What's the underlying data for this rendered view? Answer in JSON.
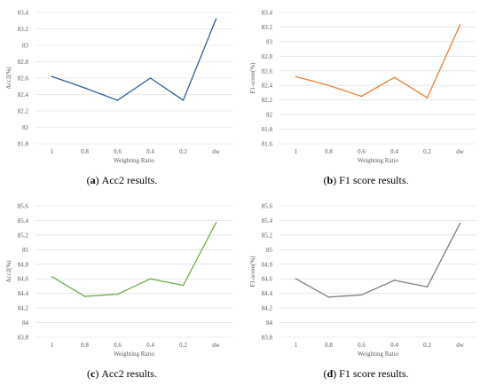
{
  "chart_data": [
    {
      "type": "line",
      "caption_letter": "a",
      "caption_text": " Acc2 results.",
      "xlabel": "Weighting Ratio",
      "ylabel": "Acc2(%)",
      "categories": [
        "1",
        "0.8",
        "0.6",
        "0.4",
        "0.2",
        "dw"
      ],
      "values": [
        82.62,
        82.48,
        82.33,
        82.6,
        82.33,
        83.32
      ],
      "ylim": [
        81.8,
        83.4
      ],
      "yticks": [
        "81.8",
        "82",
        "82.2",
        "82.4",
        "82.6",
        "82.8",
        "83",
        "83.2",
        "83.4"
      ],
      "color": "#2e5f9e",
      "grid": true
    },
    {
      "type": "line",
      "caption_letter": "b",
      "caption_text": " F1 score results.",
      "xlabel": "Weighting Ratio",
      "ylabel": "F1-score(%)",
      "categories": [
        "1",
        "0.8",
        "0.6",
        "0.4",
        "0.2",
        "dw"
      ],
      "values": [
        82.52,
        82.4,
        82.25,
        82.51,
        82.23,
        83.23
      ],
      "ylim": [
        81.6,
        83.4
      ],
      "yticks": [
        "81.6",
        "81.8",
        "82",
        "82.2",
        "82.4",
        "82.6",
        "82.8",
        "83",
        "83.2",
        "83.4"
      ],
      "color": "#ed7d31",
      "grid": true
    },
    {
      "type": "line",
      "caption_letter": "c",
      "caption_text": " Acc2 results.",
      "xlabel": "Weighting Ratio",
      "ylabel": "Acc2(%)",
      "categories": [
        "1",
        "0.8",
        "0.6",
        "0.4",
        "0.2",
        "dw"
      ],
      "values": [
        84.63,
        84.36,
        84.39,
        84.6,
        84.51,
        85.37
      ],
      "ylim": [
        83.8,
        85.6
      ],
      "yticks": [
        "83.8",
        "84",
        "84.2",
        "84.4",
        "84.6",
        "84.8",
        "85",
        "85.2",
        "85.4",
        "85.6"
      ],
      "color": "#70ad47",
      "grid": true
    },
    {
      "type": "line",
      "caption_letter": "d",
      "caption_text": " F1 score results.",
      "xlabel": "Weighting Ratio",
      "ylabel": "F1-score(%)",
      "categories": [
        "1",
        "0.8",
        "0.6",
        "0.4",
        "0.2",
        "dw"
      ],
      "values": [
        84.6,
        84.35,
        84.38,
        84.58,
        84.49,
        85.36
      ],
      "ylim": [
        83.8,
        85.6
      ],
      "yticks": [
        "83.8",
        "84",
        "84.2",
        "84.4",
        "84.6",
        "84.8",
        "85",
        "85.2",
        "85.4",
        "85.6"
      ],
      "color": "#7f7f7f",
      "grid": true
    }
  ]
}
